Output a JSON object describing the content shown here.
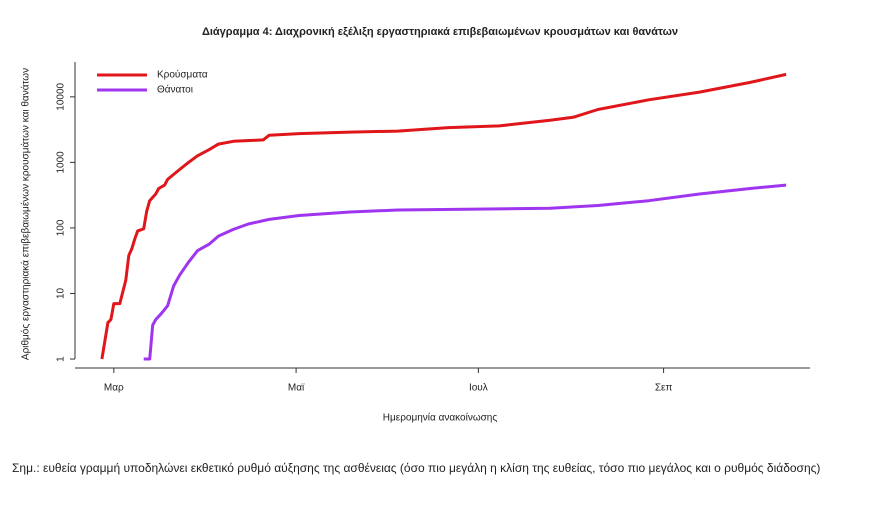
{
  "chart_data": {
    "type": "line",
    "title": "Διάγραμμα 4: Διαχρονική εξέλιξη εργαστηριακά επιβεβαιωμένων κρουσμάτων και θανάτων",
    "xlabel": "Ημερομηνία ανακοίνωσης",
    "ylabel": "Αριθμός εργαστηριακά επιβεβαιωμένων κρουσμάτων και θανάτων",
    "log_y": true,
    "legend": "top-left",
    "xlim": [
      -13,
      233
    ],
    "xticks": [
      {
        "value": 0,
        "label": "Μαρ"
      },
      {
        "value": 61,
        "label": "Μαϊ"
      },
      {
        "value": 122,
        "label": "Ιουλ"
      },
      {
        "value": 184,
        "label": "Σεπ"
      }
    ],
    "ylim": [
      0.73,
      34000
    ],
    "yticks": [
      1,
      10,
      100,
      1000,
      10000
    ],
    "series": [
      {
        "name": "Κρούσματα",
        "color": "#e0161b",
        "x": [
          -4,
          -2,
          -1,
          0,
          2,
          4,
          5,
          6,
          7,
          8,
          10,
          11,
          12,
          14,
          15,
          17,
          18,
          22,
          25,
          28,
          32,
          35,
          40,
          50,
          52,
          62,
          79,
          95,
          112,
          129,
          146,
          154,
          162,
          179,
          196,
          213,
          225
        ],
        "values": [
          1,
          3.6,
          4,
          7,
          7,
          16,
          38,
          48,
          68,
          90,
          97,
          180,
          260,
          330,
          400,
          450,
          550,
          780,
          1000,
          1260,
          1580,
          1900,
          2100,
          2200,
          2600,
          2750,
          2900,
          3000,
          3400,
          3600,
          4400,
          4900,
          6400,
          9000,
          11800,
          16600,
          22000
        ]
      },
      {
        "name": "Θάνατοι",
        "color": "#a035f0",
        "x": [
          10,
          12,
          13,
          14,
          16,
          18,
          20,
          22,
          25,
          28,
          32,
          35,
          40,
          45,
          52,
          62,
          79,
          95,
          129,
          146,
          162,
          179,
          196,
          213,
          225
        ],
        "values": [
          1,
          1,
          3.3,
          4,
          5,
          6.5,
          13,
          19,
          30,
          45,
          57,
          75,
          95,
          115,
          135,
          155,
          175,
          188,
          195,
          200,
          220,
          260,
          330,
          400,
          450
        ]
      }
    ],
    "note": "Σημ.: ευθεία γραμμή υποδηλώνει εκθετικό ρυθμό αύξησης της ασθένειας (όσο πιο μεγάλη η κλίση της ευθείας, τόσο πιο μεγάλος και ο ρυθμός διάδοσης)"
  }
}
